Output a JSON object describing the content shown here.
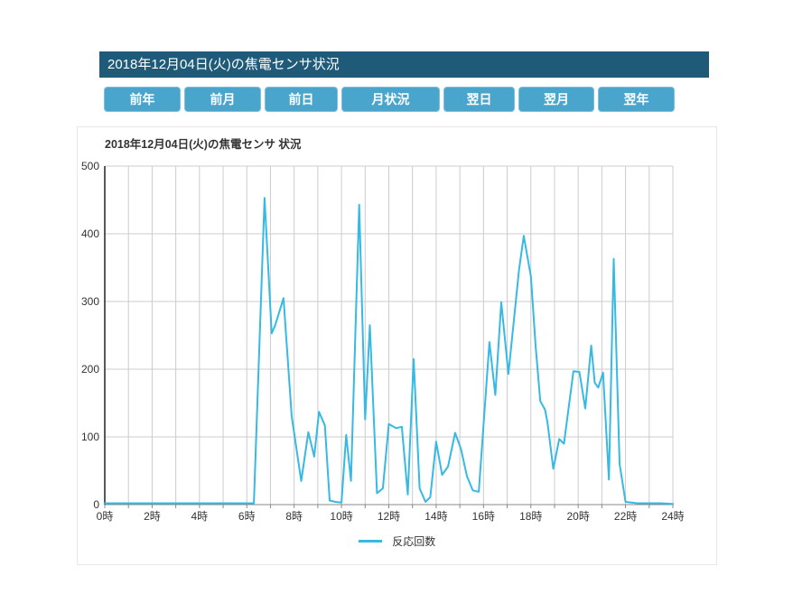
{
  "header": {
    "title": "2018年12月04日(火)の焦電センサ状況",
    "bg_color": "#1f5a78"
  },
  "nav": {
    "bg_color": "#4aa5cd",
    "buttons": [
      {
        "name": "prev-year",
        "label": "前年"
      },
      {
        "name": "prev-month",
        "label": "前月"
      },
      {
        "name": "prev-day",
        "label": "前日"
      },
      {
        "name": "month-status",
        "label": "月状況"
      },
      {
        "name": "next-day",
        "label": "翌日"
      },
      {
        "name": "next-month",
        "label": "翌月"
      },
      {
        "name": "next-year",
        "label": "翌年"
      }
    ]
  },
  "chart": {
    "title": "2018年12月04日(火)の焦電センサ 状況",
    "legend_label": "反応回数",
    "colors": {
      "line": "#36b9e3",
      "grid": "#cccccc",
      "y_axis": "#222222",
      "x_axis": "#888888",
      "tick_text": "#333333"
    }
  },
  "chart_data": {
    "type": "line",
    "title": "2018年12月04日(火)の焦電センサ 状況",
    "xlabel": "",
    "ylabel": "",
    "xlim": [
      0,
      24
    ],
    "ylim": [
      0,
      500
    ],
    "grid": true,
    "legend_position": "bottom",
    "x_tick_hours": [
      0,
      2,
      4,
      6,
      8,
      10,
      12,
      14,
      16,
      18,
      20,
      22,
      24
    ],
    "x_tick_labels": [
      "0時",
      "2時",
      "4時",
      "6時",
      "8時",
      "10時",
      "12時",
      "14時",
      "16時",
      "18時",
      "20時",
      "22時",
      "24時"
    ],
    "y_ticks": [
      0,
      100,
      200,
      300,
      400,
      500
    ],
    "series": [
      {
        "name": "反応回数",
        "x_hours": [
          0,
          1,
          2,
          3,
          4,
          5,
          6,
          6.3,
          6.75,
          7.05,
          7.2,
          7.55,
          7.9,
          8.3,
          8.6,
          8.85,
          9.05,
          9.3,
          9.5,
          9.75,
          10,
          10.2,
          10.4,
          10.75,
          11,
          11.2,
          11.5,
          11.75,
          12,
          12.3,
          12.55,
          12.8,
          13.05,
          13.3,
          13.55,
          13.75,
          14,
          14.25,
          14.5,
          14.8,
          15.05,
          15.3,
          15.55,
          15.8,
          16.25,
          16.5,
          16.75,
          17.05,
          17.5,
          17.7,
          18,
          18.2,
          18.4,
          18.6,
          18.7,
          18.95,
          19.2,
          19.4,
          19.8,
          20.05,
          20.3,
          20.55,
          20.7,
          20.85,
          21.05,
          21.3,
          21.5,
          21.75,
          22,
          22.5,
          23,
          23.5,
          24
        ],
        "values": [
          2,
          2,
          2,
          2,
          2,
          2,
          2,
          2,
          453,
          253,
          265,
          305,
          130,
          35,
          107,
          71,
          137,
          117,
          6,
          4,
          3,
          103,
          35,
          443,
          126,
          265,
          17,
          24,
          119,
          113,
          115,
          15,
          215,
          24,
          4,
          11,
          93,
          44,
          56,
          106,
          82,
          42,
          21,
          19,
          240,
          162,
          299,
          193,
          346,
          397,
          337,
          235,
          153,
          140,
          122,
          53,
          97,
          90,
          197,
          196,
          142,
          235,
          180,
          173,
          195,
          37,
          363,
          60,
          4,
          2,
          2,
          2,
          1
        ]
      }
    ]
  }
}
